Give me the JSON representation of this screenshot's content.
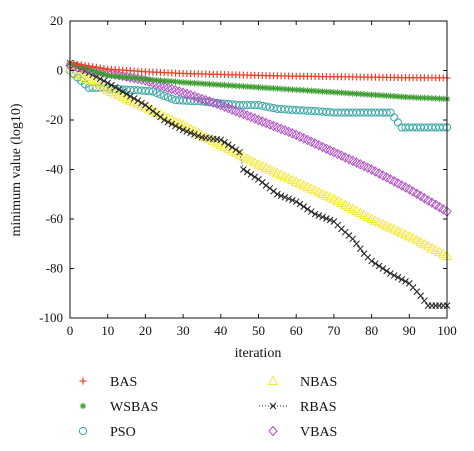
{
  "chart_data": {
    "type": "line",
    "xlabel": "iteration",
    "ylabel": "minimum value (log10)",
    "xlim": [
      0,
      100
    ],
    "ylim": [
      -100,
      20
    ],
    "xticks": [
      0,
      10,
      20,
      30,
      40,
      50,
      60,
      70,
      80,
      90,
      100
    ],
    "yticks": [
      20,
      0,
      -20,
      -40,
      -60,
      -80,
      -100
    ],
    "grid": false,
    "legend_position": "below plot, two columns",
    "series": [
      {
        "name": "BAS",
        "color": "#e8452c",
        "marker": "plus",
        "line": "none",
        "x": [
          0,
          10,
          20,
          30,
          40,
          50,
          60,
          70,
          80,
          90,
          100
        ],
        "y": [
          3,
          0.6,
          -0.5,
          -1.2,
          -1.6,
          -2.0,
          -2.3,
          -2.5,
          -2.7,
          -2.9,
          -3.0
        ]
      },
      {
        "name": "WSBAS",
        "color": "#3a9a2e",
        "marker": "asterisk",
        "line": "none",
        "x": [
          0,
          10,
          20,
          30,
          40,
          50,
          60,
          70,
          80,
          90,
          100
        ],
        "y": [
          3,
          -2,
          -3.5,
          -4.8,
          -5.8,
          -6.8,
          -7.8,
          -8.8,
          -9.8,
          -10.8,
          -11.5
        ]
      },
      {
        "name": "PSO",
        "color": "#3aa6a6",
        "marker": "circle",
        "line": "none",
        "x": [
          0,
          5,
          8,
          12,
          18,
          22,
          28,
          35,
          45,
          50,
          55,
          60,
          66,
          70,
          75,
          80,
          85,
          88,
          92,
          96,
          100
        ],
        "y": [
          0,
          -7,
          -7,
          -7.5,
          -8,
          -8.5,
          -12,
          -12.5,
          -14,
          -14,
          -15.5,
          -16,
          -16.5,
          -17,
          -17,
          -17,
          -17,
          -23,
          -23,
          -23,
          -23
        ]
      },
      {
        "name": "NBAS",
        "color": "#f5e93a",
        "marker": "triangle",
        "line": "none",
        "x": [
          0,
          10,
          20,
          30,
          40,
          50,
          60,
          70,
          80,
          90,
          100
        ],
        "y": [
          1,
          -8,
          -15,
          -22,
          -30,
          -38,
          -45,
          -52,
          -60,
          -67,
          -75
        ]
      },
      {
        "name": "RBAS",
        "color": "#222222",
        "marker": "x",
        "line": "dotted",
        "x": [
          0,
          10,
          20,
          25,
          30,
          35,
          40,
          45,
          46,
          50,
          55,
          60,
          65,
          70,
          72,
          75,
          78,
          80,
          85,
          90,
          93,
          95,
          100
        ],
        "y": [
          3,
          -5,
          -14,
          -20,
          -24,
          -27,
          -28,
          -33,
          -40,
          -44,
          -50,
          -53,
          -58,
          -61,
          -64,
          -68,
          -74,
          -77,
          -82,
          -86,
          -91,
          -95,
          -95
        ]
      },
      {
        "name": "VBAS",
        "color": "#b04fc4",
        "marker": "diamond",
        "line": "none",
        "x": [
          0,
          10,
          20,
          30,
          40,
          50,
          60,
          70,
          80,
          90,
          100
        ],
        "y": [
          2,
          -1,
          -4,
          -9,
          -14,
          -20,
          -26,
          -33,
          -40,
          -48,
          -57
        ]
      }
    ]
  }
}
